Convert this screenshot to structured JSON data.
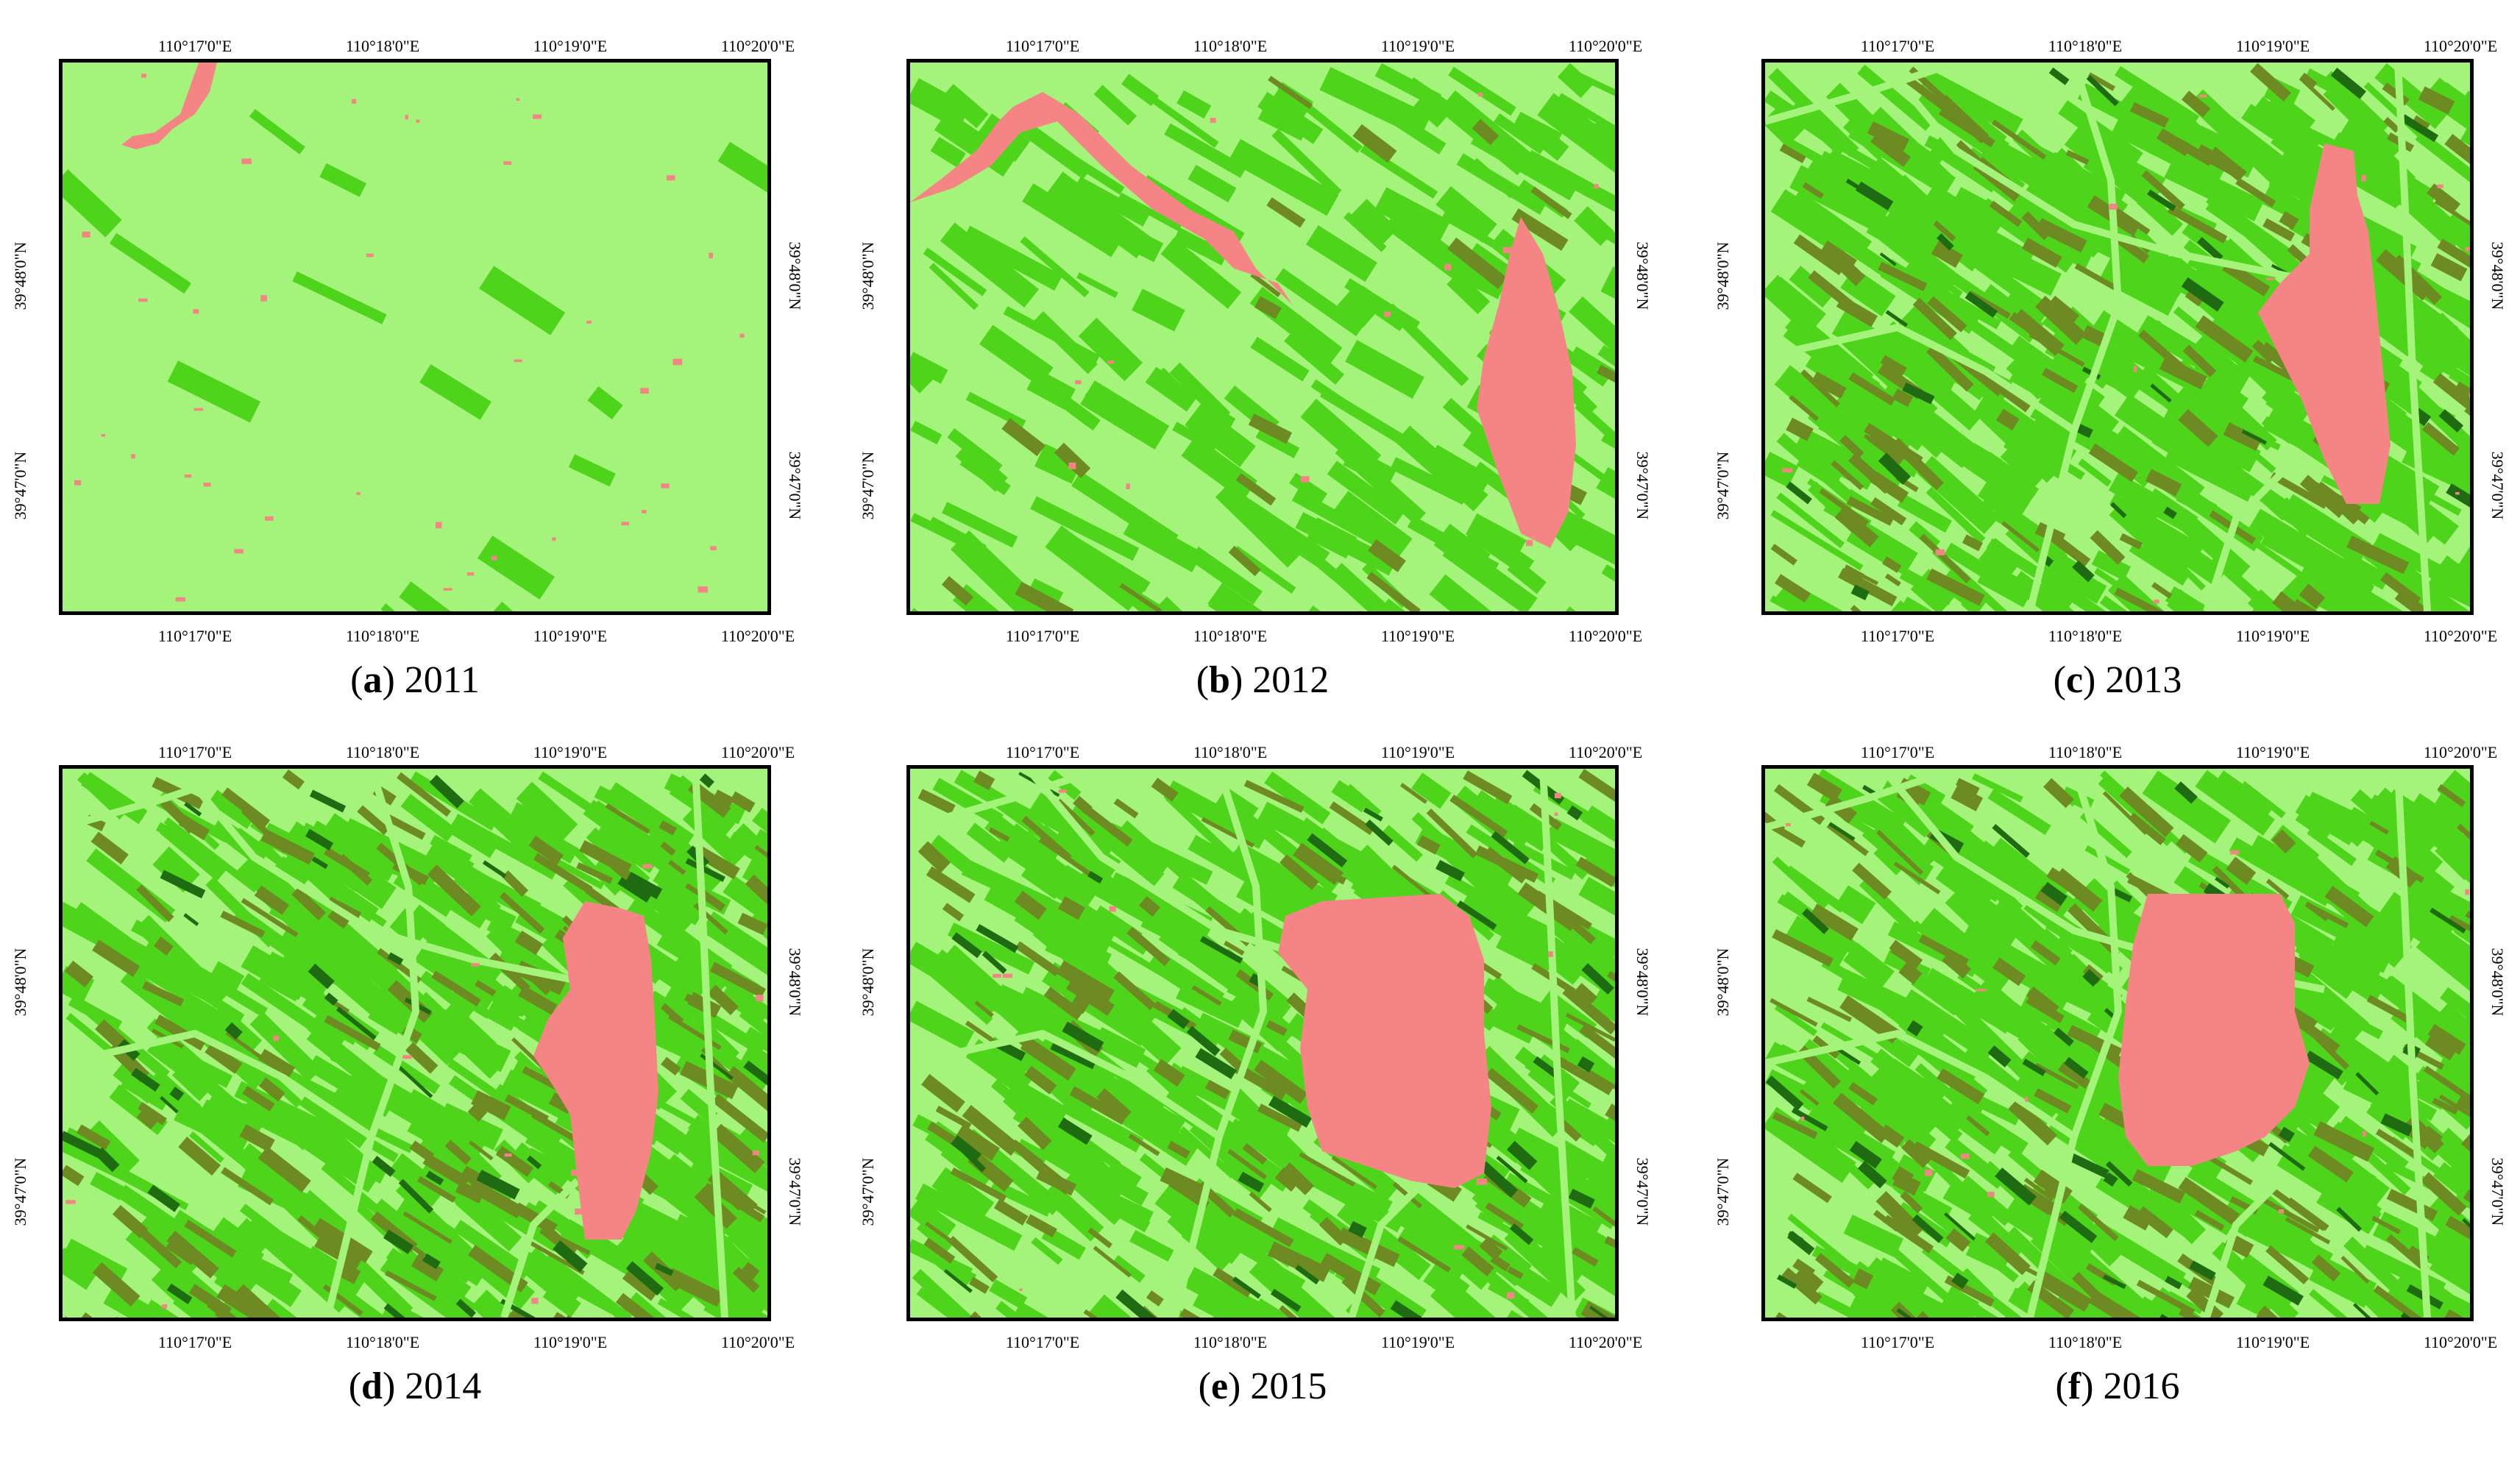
{
  "colors": {
    "light_green": "#a4f37a",
    "mid_green": "#4fd41c",
    "olive": "#6e8a22",
    "dark_green": "#1f6b11",
    "pink": "#f58585"
  },
  "ticks": {
    "lon": [
      "110°17'0\"E",
      "110°18'0\"E",
      "110°19'0\"E",
      "110°20'0\"E"
    ],
    "lat": [
      "39°48'0\"N",
      "39°47'0\"N"
    ]
  },
  "panels": [
    {
      "letter": "a",
      "year": "2011"
    },
    {
      "letter": "b",
      "year": "2012"
    },
    {
      "letter": "c",
      "year": "2013"
    },
    {
      "letter": "d",
      "year": "2014"
    },
    {
      "letter": "e",
      "year": "2015"
    },
    {
      "letter": "f",
      "year": "2016"
    }
  ]
}
